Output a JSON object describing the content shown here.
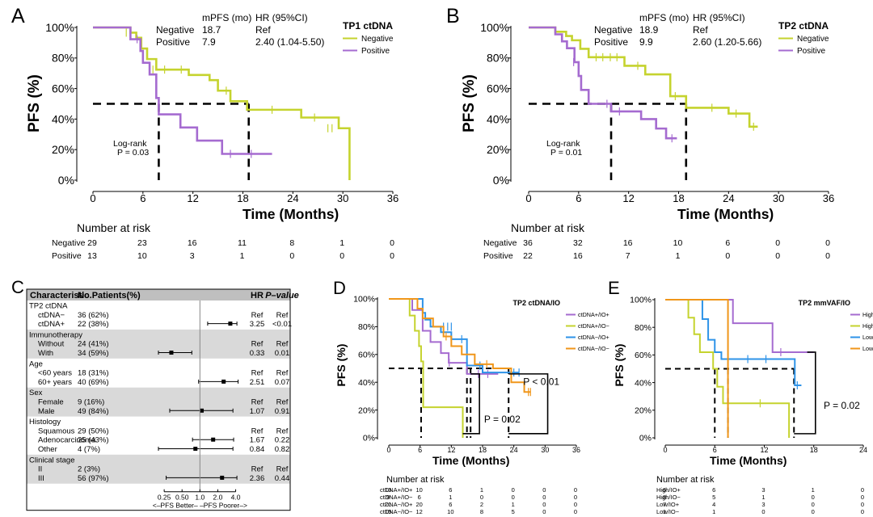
{
  "colors": {
    "negative": "#c5d32e",
    "positive": "#a56bd0",
    "blue": "#2e93e8",
    "orange": "#f0961a",
    "ref_line": "#888888",
    "forest_band": "#d9d9d9",
    "forest_header": "#bfbfbf"
  },
  "chart_data": [
    {
      "panel": "A",
      "type": "line",
      "subtype": "kaplan-meier",
      "xlabel": "Time (Months)",
      "ylabel": "PFS (%)",
      "xlim": [
        0,
        36
      ],
      "ylim": [
        0,
        100
      ],
      "x_ticks": [
        "0",
        "6",
        "12",
        "18",
        "24",
        "30",
        "36"
      ],
      "y_ticks": [
        "0%",
        "20%",
        "40%",
        "60%",
        "80%",
        "100%"
      ],
      "legend_title": "TP1 ctDNA",
      "stats_header": {
        "mpfs": "mPFS (mo)",
        "hr": "HR (95%CI)"
      },
      "stats_rows": [
        {
          "group": "Negative",
          "mpfs": "18.7",
          "hr": "Ref"
        },
        {
          "group": "Positive",
          "mpfs": "7.9",
          "hr": "2.40 (1.04-5.50)"
        }
      ],
      "logrank": [
        "Log-rank",
        "P = 0.03"
      ],
      "median_x": [
        7.9,
        18.7
      ],
      "median_y": 50,
      "series": [
        {
          "name": "Negative",
          "color_key": "negative",
          "x": [
            0,
            4.5,
            5.2,
            5.8,
            6.5,
            7.6,
            9.5,
            11.5,
            14,
            15,
            16.5,
            18.5,
            25,
            29.5,
            30.8,
            30.8
          ],
          "y": [
            100,
            96.6,
            93.2,
            86.2,
            79.3,
            72.4,
            72.4,
            68.9,
            65.5,
            58.6,
            51.7,
            46.1,
            41,
            34,
            34,
            0
          ],
          "censor": [
            [
              4.0,
              96.6
            ],
            [
              7.2,
              72.4
            ],
            [
              8.6,
              72.4
            ],
            [
              10.6,
              72.4
            ],
            [
              16.0,
              58.6
            ],
            [
              21.5,
              46.1
            ],
            [
              26.6,
              41.0
            ],
            [
              28.2,
              34.0
            ],
            [
              28.7,
              34.0
            ]
          ]
        },
        {
          "name": "Positive",
          "color_key": "positive",
          "x": [
            0,
            4.5,
            5.7,
            6,
            6.8,
            7.6,
            7.9,
            10.5,
            12.5,
            15.5,
            21.5
          ],
          "y": [
            100,
            92.3,
            84.6,
            76.9,
            69.2,
            53.8,
            43.1,
            34.5,
            25.9,
            17.2,
            17.2
          ],
          "censor": [
            [
              5.3,
              92.3
            ],
            [
              16.5,
              17.2
            ],
            [
              19.0,
              17.2
            ]
          ]
        }
      ],
      "risk_title": "Number at risk",
      "risk_rows": [
        {
          "label": "Negative",
          "values": [
            "29",
            "23",
            "16",
            "11",
            "8",
            "1",
            "0"
          ]
        },
        {
          "label": "Positive",
          "values": [
            "13",
            "10",
            "3",
            "1",
            "0",
            "0",
            "0"
          ]
        }
      ]
    },
    {
      "panel": "B",
      "type": "line",
      "subtype": "kaplan-meier",
      "xlabel": "Time (Months)",
      "ylabel": "PFS (%)",
      "xlim": [
        0,
        36
      ],
      "ylim": [
        0,
        100
      ],
      "x_ticks": [
        "0",
        "6",
        "12",
        "18",
        "24",
        "30",
        "36"
      ],
      "y_ticks": [
        "0%",
        "20%",
        "40%",
        "60%",
        "80%",
        "100%"
      ],
      "legend_title": "TP2 ctDNA",
      "stats_header": {
        "mpfs": "mPFS (mo)",
        "hr": "HR (95%CI)"
      },
      "stats_rows": [
        {
          "group": "Negative",
          "mpfs": "18.9",
          "hr": "Ref"
        },
        {
          "group": "Positive",
          "mpfs": "9.9",
          "hr": "2.60 (1.20-5.66)"
        }
      ],
      "logrank": [
        "Log-rank",
        "P = 0.01"
      ],
      "median_x": [
        9.9,
        18.9
      ],
      "median_y": 50,
      "series": [
        {
          "name": "Negative",
          "color_key": "negative",
          "x": [
            0,
            3.2,
            4.5,
            5.2,
            6.2,
            7.2,
            11.5,
            14,
            17,
            18.9,
            24,
            26.5,
            27.5
          ],
          "y": [
            100,
            97.2,
            94.4,
            91.6,
            86,
            80.5,
            74.9,
            69.3,
            55,
            47.4,
            43.6,
            35,
            35
          ],
          "censor": [
            [
              8.1,
              80.5
            ],
            [
              8.9,
              80.5
            ],
            [
              9.8,
              80.5
            ],
            [
              10.6,
              80.5
            ],
            [
              13.1,
              74.9
            ],
            [
              17.6,
              55.0
            ],
            [
              22.0,
              47.4
            ],
            [
              24.9,
              43.6
            ],
            [
              27.0,
              35.0
            ]
          ]
        },
        {
          "name": "Positive",
          "color_key": "positive",
          "x": [
            0,
            3.2,
            4,
            4.6,
            5.5,
            6,
            6.3,
            7.2,
            9.9,
            13.5,
            15.3,
            16.5,
            17.8
          ],
          "y": [
            100,
            95.5,
            90.9,
            86.4,
            77.3,
            68.2,
            59.1,
            50,
            45,
            40,
            33.8,
            27.4,
            27.4
          ],
          "censor": [
            [
              5.4,
              77.3
            ],
            [
              9.4,
              50.0
            ],
            [
              10.9,
              45.0
            ],
            [
              17.2,
              27.4
            ]
          ]
        }
      ],
      "risk_title": "Number at risk",
      "risk_rows": [
        {
          "label": "Negative",
          "values": [
            "36",
            "32",
            "16",
            "10",
            "6",
            "0",
            "0"
          ]
        },
        {
          "label": "Positive",
          "values": [
            "22",
            "16",
            "7",
            "1",
            "0",
            "0",
            "0"
          ]
        }
      ]
    },
    {
      "panel": "C",
      "type": "scatter",
      "subtype": "forest",
      "header": {
        "characteristic": "Characteristic",
        "patients": "No.Patients(%)",
        "hr": "HR",
        "pvalue": "P–value"
      },
      "x_ticks": [
        "0.25",
        "0.50",
        "1.0",
        "2.0",
        "4.0"
      ],
      "x_tick_values": [
        0.25,
        0.5,
        1.0,
        2.0,
        4.0
      ],
      "x_range": [
        0.2,
        4.6
      ],
      "x_note": "<–PFS Better–  –PFS Poorer–>",
      "groups": [
        {
          "title": "TP2 ctDNA",
          "shaded": false,
          "rows": [
            {
              "label": "ctDNA−",
              "n": "36 (62%)",
              "hr": "Ref",
              "p": "Ref",
              "est": null
            },
            {
              "label": "ctDNA+",
              "n": "22 (38%)",
              "hr": "3.25",
              "p": "<0.01",
              "est": 3.25,
              "lo": 1.35,
              "hi": 4.2
            }
          ]
        },
        {
          "title": "Immunotherapy",
          "shaded": true,
          "rows": [
            {
              "label": "Without",
              "n": "24 (41%)",
              "hr": "Ref",
              "p": "Ref",
              "est": null
            },
            {
              "label": "With",
              "n": "34 (59%)",
              "hr": "0.33",
              "p": "0.01",
              "est": 0.33,
              "lo": 0.2,
              "hi": 0.73
            }
          ]
        },
        {
          "title": "Age",
          "shaded": false,
          "rows": [
            {
              "label": "<60 years",
              "n": "18 (31%)",
              "hr": "Ref",
              "p": "Ref",
              "est": null
            },
            {
              "label": "60+ years",
              "n": "40 (69%)",
              "hr": "2.51",
              "p": "0.07",
              "est": 2.51,
              "lo": 0.95,
              "hi": 4.4
            }
          ]
        },
        {
          "title": "Sex",
          "shaded": true,
          "rows": [
            {
              "label": "Female",
              "n": "9 (16%)",
              "hr": "Ref",
              "p": "Ref",
              "est": null
            },
            {
              "label": "Male",
              "n": "49 (84%)",
              "hr": "1.07",
              "p": "0.91",
              "est": 1.07,
              "lo": 0.31,
              "hi": 3.6
            }
          ]
        },
        {
          "title": "Histology",
          "shaded": false,
          "rows": [
            {
              "label": "Squamous",
              "n": "29 (50%)",
              "hr": "Ref",
              "p": "Ref",
              "est": null
            },
            {
              "label": "Adenocarcinoma",
              "n": "25 (43%)",
              "hr": "1.67",
              "p": "0.22",
              "est": 1.67,
              "lo": 0.75,
              "hi": 3.7
            },
            {
              "label": "Other",
              "n": "4 (7%)",
              "hr": "0.84",
              "p": "0.82",
              "est": 0.84,
              "lo": 0.2,
              "hi": 3.6
            }
          ]
        },
        {
          "title": "Clinical stage",
          "shaded": true,
          "rows": [
            {
              "label": "II",
              "n": "2 (3%)",
              "hr": "Ref",
              "p": "Ref",
              "est": null
            },
            {
              "label": "III",
              "n": "56 (97%)",
              "hr": "2.36",
              "p": "0.44",
              "est": 2.36,
              "lo": 0.27,
              "hi": 4.2
            }
          ]
        }
      ]
    },
    {
      "panel": "D",
      "type": "line",
      "subtype": "kaplan-meier",
      "xlabel": "Time (Months)",
      "ylabel": "PFS (%)",
      "xlim": [
        0,
        36
      ],
      "ylim": [
        0,
        100
      ],
      "x_ticks": [
        "0",
        "6",
        "12",
        "18",
        "24",
        "30",
        "36"
      ],
      "y_ticks": [
        "0%",
        "20%",
        "40%",
        "60%",
        "80%",
        "100%"
      ],
      "legend_title": "TP2 ctDNA/IO",
      "p_labels": [
        "P < 0.01",
        "P = 0.02"
      ],
      "median_x": [
        6.2,
        15.0,
        15.7,
        23.0
      ],
      "median_y": 50,
      "series": [
        {
          "name": "ctDNA+/IO+",
          "color_key": "positive",
          "x": [
            0,
            4.5,
            6.5,
            8,
            10,
            11.5,
            13,
            15,
            18,
            21
          ],
          "y": [
            100,
            92,
            77,
            69,
            61,
            54,
            54,
            46,
            46,
            46
          ],
          "censor": [
            [
              11.6,
              54
            ],
            [
              17.2,
              46
            ],
            [
              19.0,
              46
            ]
          ]
        },
        {
          "name": "ctDNA+/IO−",
          "color_key": "negative",
          "x": [
            0,
            4,
            5,
            5.8,
            6.2,
            6.6,
            13.5,
            14.2,
            14.2
          ],
          "y": [
            100,
            88,
            77,
            66,
            55,
            22,
            22,
            22,
            0
          ],
          "censor": []
        },
        {
          "name": "ctDNA−/IO+",
          "color_key": "blue",
          "x": [
            0,
            6.5,
            7,
            8,
            10,
            12,
            15,
            18,
            22,
            25
          ],
          "y": [
            100,
            90,
            85,
            80,
            76,
            71,
            52,
            47,
            47,
            47
          ],
          "censor": [
            [
              10.5,
              80
            ],
            [
              11.3,
              80
            ],
            [
              12.0,
              80
            ],
            [
              14.0,
              71
            ],
            [
              17.5,
              52
            ],
            [
              24.0,
              47
            ],
            [
              25.0,
              47
            ]
          ]
        },
        {
          "name": "ctDNA−/IO−",
          "color_key": "orange",
          "x": [
            0,
            5.5,
            6.5,
            8.5,
            10.5,
            12,
            14,
            16.5,
            20,
            23.5,
            26,
            27.2
          ],
          "y": [
            100,
            93,
            86,
            80,
            73,
            66,
            60,
            53,
            50,
            40,
            33,
            33
          ],
          "censor": [
            [
              11.0,
              73
            ],
            [
              18.8,
              53
            ],
            [
              26.8,
              33
            ],
            [
              27.2,
              33
            ]
          ]
        }
      ],
      "risk_title": "Number at risk",
      "risk_rows": [
        {
          "label": "ctDNA+/IO+",
          "values": [
            "13",
            "10",
            "6",
            "1",
            "0",
            "0",
            "0"
          ]
        },
        {
          "label": "ctDNA+/IO−",
          "values": [
            "9",
            "6",
            "1",
            "0",
            "0",
            "0",
            "0"
          ]
        },
        {
          "label": "ctDNA−/IO+",
          "values": [
            "21",
            "20",
            "6",
            "2",
            "1",
            "0",
            "0"
          ]
        },
        {
          "label": "ctDNA−/IO−",
          "values": [
            "15",
            "12",
            "10",
            "8",
            "5",
            "0",
            "0"
          ]
        }
      ]
    },
    {
      "panel": "E",
      "type": "line",
      "subtype": "kaplan-meier",
      "xlabel": "Time (Months)",
      "ylabel": "PFS (%)",
      "xlim": [
        0,
        24
      ],
      "ylim": [
        0,
        100
      ],
      "x_ticks": [
        "0",
        "6",
        "12",
        "18",
        "24"
      ],
      "y_ticks": [
        "0%",
        "20%",
        "40%",
        "60%",
        "80%",
        "100%"
      ],
      "legend_title": "TP2 mmVAF/IO",
      "p_labels": [
        "P = 0.02"
      ],
      "median_x": [
        6.0,
        7.6,
        15.6
      ],
      "median_y": 50,
      "series": [
        {
          "name": "High/IO+",
          "color_key": "positive",
          "x": [
            0,
            7.8,
            8.2,
            11.5,
            13,
            14.5,
            18
          ],
          "y": [
            100,
            100,
            83,
            83,
            62,
            62,
            62
          ],
          "censor": [
            [
              14.0,
              62
            ]
          ]
        },
        {
          "name": "High/IO−",
          "color_key": "negative",
          "x": [
            0,
            2.8,
            3.5,
            4.2,
            5.2,
            5.8,
            6.3,
            7,
            15,
            15
          ],
          "y": [
            100,
            87,
            75,
            62,
            62,
            50,
            37,
            25,
            25,
            0
          ],
          "censor": [
            [
              11.5,
              25
            ]
          ]
        },
        {
          "name": "Low/IO+",
          "color_key": "blue",
          "x": [
            0,
            4.5,
            5.2,
            6,
            6.8,
            15.7,
            16.5
          ],
          "y": [
            100,
            86,
            71,
            62,
            57,
            38,
            38
          ],
          "censor": [
            [
              10.0,
              57
            ],
            [
              12.2,
              57
            ],
            [
              16.0,
              38
            ]
          ]
        },
        {
          "name": "Low/IO−",
          "color_key": "orange",
          "x": [
            0,
            7.6,
            7.6
          ],
          "y": [
            100,
            100,
            0
          ],
          "censor": []
        }
      ],
      "risk_title": "Number at risk",
      "risk_rows": [
        {
          "label": "High/IO+",
          "values": [
            "6",
            "6",
            "3",
            "1",
            "0"
          ]
        },
        {
          "label": "High/IO−",
          "values": [
            "8",
            "5",
            "1",
            "0",
            "0"
          ]
        },
        {
          "label": "Low/IO+",
          "values": [
            "7",
            "4",
            "3",
            "0",
            "0"
          ]
        },
        {
          "label": "Low/IO−",
          "values": [
            "1",
            "1",
            "0",
            "0",
            "0"
          ]
        }
      ]
    }
  ]
}
